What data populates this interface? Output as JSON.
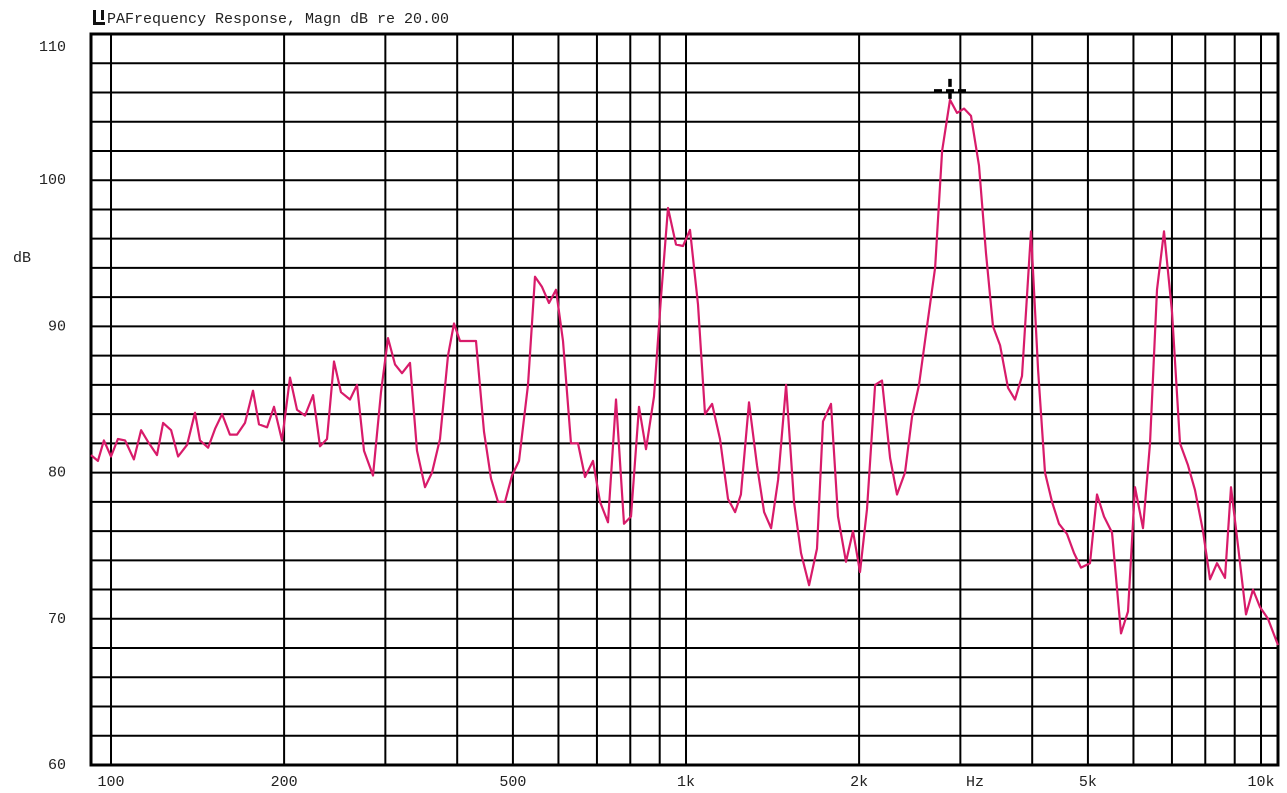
{
  "chart_data": {
    "type": "line",
    "title": "PAFrequency Response, Magn dB re 20.00",
    "ylabel": "dB",
    "xlabel": "Hz",
    "log_x": true,
    "color": "#d81b6a",
    "grid": true,
    "xlim": [
      92.3,
      10704
    ],
    "ylim": [
      60,
      110
    ],
    "xticks": [
      100,
      200,
      500,
      {
        "value": 1000,
        "label": "1k"
      },
      {
        "value": 2000,
        "label": "2k"
      },
      {
        "value": 5000,
        "label": "5k"
      },
      {
        "value": 10000,
        "label": "10k"
      }
    ],
    "yticks": [
      60,
      70,
      80,
      90,
      100,
      110
    ],
    "xgrid": [
      100,
      200,
      300,
      400,
      500,
      600,
      700,
      800,
      900,
      1000,
      2000,
      3000,
      4000,
      5000,
      6000,
      7000,
      8000,
      9000,
      10000
    ],
    "ygrid": [
      60,
      62,
      64,
      66,
      68,
      70,
      72,
      74,
      76,
      78,
      80,
      82,
      84,
      86,
      88,
      90,
      92,
      94,
      96,
      98,
      100,
      102,
      104,
      106,
      108,
      110
    ],
    "cursor": {
      "x": 2878,
      "y": 105.7
    },
    "x": [
      92.3,
      94.9,
      97.2,
      100,
      102.8,
      105.8,
      109.6,
      112.8,
      116.0,
      120.2,
      123.2,
      127.2,
      130.8,
      135.6,
      140.0,
      142.8,
      147.5,
      151.7,
      156.0,
      161.0,
      165.6,
      171.0,
      176.6,
      180.9,
      186.8,
      192.1,
      198.3,
      204.8,
      210.6,
      217.5,
      224.6,
      230.9,
      237.5,
      244.2,
      251.2,
      260.4,
      267.8,
      275.4,
      285.5,
      294.8,
      303.2,
      311.8,
      320.7,
      331.1,
      340.5,
      351.6,
      361.6,
      373.4,
      385.6,
      394.9,
      404.5,
      417.7,
      431.3,
      445.3,
      458.0,
      471.0,
      484.4,
      498.2,
      512.4,
      531.1,
      546.3,
      561.8,
      577.7,
      594.2,
      611.1,
      630.9,
      648.9,
      667.4,
      689.1,
      708.7,
      731.7,
      755.5,
      780.2,
      802.3,
      828.4,
      852.0,
      879.7,
      904.7,
      930.5,
      960.8,
      988.0,
      1016,
      1049,
      1079,
      1110,
      1146,
      1183,
      1217,
      1246,
      1287,
      1329,
      1367,
      1406,
      1446,
      1493,
      1541,
      1585,
      1637,
      1690,
      1731,
      1787,
      1838,
      1898,
      1952,
      2007,
      2064,
      2132,
      2192,
      2264,
      2328,
      2404,
      2472,
      2542,
      2625,
      2711,
      2788,
      2878,
      2960,
      3045,
      3131,
      3233,
      3325,
      3419,
      3517,
      3631,
      3734,
      3840,
      3981,
      4095,
      4211,
      4331,
      4454,
      4599,
      4729,
      4864,
      5042,
      5185,
      5333,
      5507,
      5708,
      5871,
      6038,
      6234,
      6412,
      6594,
      6781,
      7002,
      7230,
      7465,
      7678,
      7927,
      8153,
      8385,
      8658,
      8868,
      9120,
      9417,
      9685,
      9961,
      10285,
      10704
    ],
    "values": [
      81.2,
      80.8,
      82.2,
      81.1,
      82.3,
      82.2,
      80.9,
      82.9,
      82.1,
      81.2,
      83.4,
      82.9,
      81.1,
      81.9,
      84.1,
      82.2,
      81.7,
      83.0,
      84.0,
      82.6,
      82.6,
      83.4,
      85.6,
      83.3,
      83.1,
      84.5,
      82.2,
      86.5,
      84.3,
      83.9,
      85.3,
      81.8,
      82.3,
      87.6,
      85.5,
      85.0,
      86.0,
      81.5,
      79.8,
      85.5,
      89.2,
      87.4,
      86.8,
      87.5,
      81.5,
      79.0,
      80.0,
      82.3,
      88.0,
      90.2,
      89.0,
      89.0,
      89.0,
      82.8,
      79.6,
      78.0,
      78.0,
      79.8,
      80.8,
      86.0,
      93.4,
      92.7,
      91.6,
      92.5,
      89.0,
      82.0,
      82.0,
      79.7,
      80.8,
      78.0,
      76.6,
      85.0,
      76.5,
      77.0,
      84.5,
      81.6,
      85.2,
      92.0,
      98.1,
      95.6,
      95.5,
      96.6,
      91.5,
      84.0,
      84.7,
      82.3,
      78.2,
      77.3,
      78.5,
      84.8,
      80.5,
      77.3,
      76.2,
      79.5,
      86.0,
      78.0,
      74.5,
      72.3,
      74.8,
      83.5,
      84.7,
      77.0,
      73.9,
      76.0,
      73.2,
      77.5,
      86.0,
      86.3,
      81.0,
      78.5,
      80.0,
      83.8,
      86.0,
      90.0,
      94.0,
      102.0,
      105.5,
      104.6,
      104.9,
      104.4,
      101.0,
      95.0,
      90.0,
      88.7,
      85.8,
      85.0,
      86.6,
      96.5,
      87.0,
      80.0,
      78.0,
      76.5,
      75.8,
      74.5,
      73.5,
      73.8,
      78.5,
      77.0,
      75.9,
      69.0,
      70.5,
      79.0,
      76.2,
      82.0,
      92.5,
      96.5,
      91.0,
      82.0,
      80.5,
      78.8,
      76.0,
      72.7,
      73.8,
      72.8,
      79.0,
      75.0,
      70.3,
      72.0,
      70.8,
      70.0,
      68.2
    ]
  }
}
